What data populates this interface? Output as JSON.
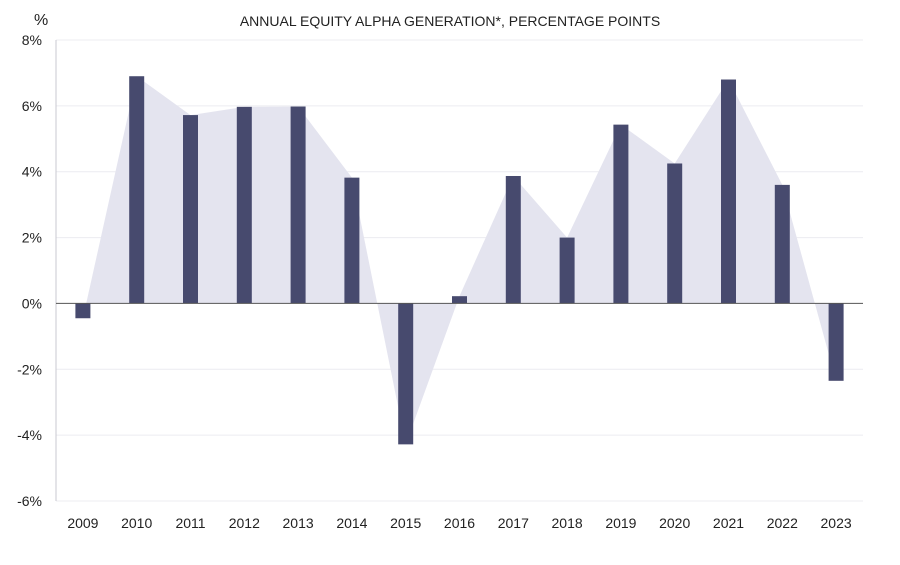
{
  "chart_data": {
    "type": "bar",
    "title": "ANNUAL EQUITY ALPHA GENERATION*, PERCENTAGE POINTS",
    "y_unit_label": "%",
    "categories": [
      "2009",
      "2010",
      "2011",
      "2012",
      "2013",
      "2014",
      "2015",
      "2016",
      "2017",
      "2018",
      "2019",
      "2020",
      "2021",
      "2022",
      "2023"
    ],
    "series": [
      {
        "values": [
          -0.45,
          6.9,
          5.72,
          5.97,
          5.98,
          3.82,
          -4.28,
          0.22,
          3.87,
          2.0,
          5.43,
          4.25,
          6.8,
          3.6,
          -2.35
        ]
      }
    ],
    "ylim": [
      -6,
      8
    ],
    "yticks": [
      8,
      6,
      4,
      2,
      0,
      -2,
      -4,
      -6
    ],
    "ytick_labels": [
      "8%",
      "6%",
      "4%",
      "2%",
      "0%",
      "-2%",
      "-4%",
      "-6%"
    ],
    "grid": true,
    "colors": {
      "bar": "#474a6e",
      "area": "#e4e4ef"
    }
  }
}
